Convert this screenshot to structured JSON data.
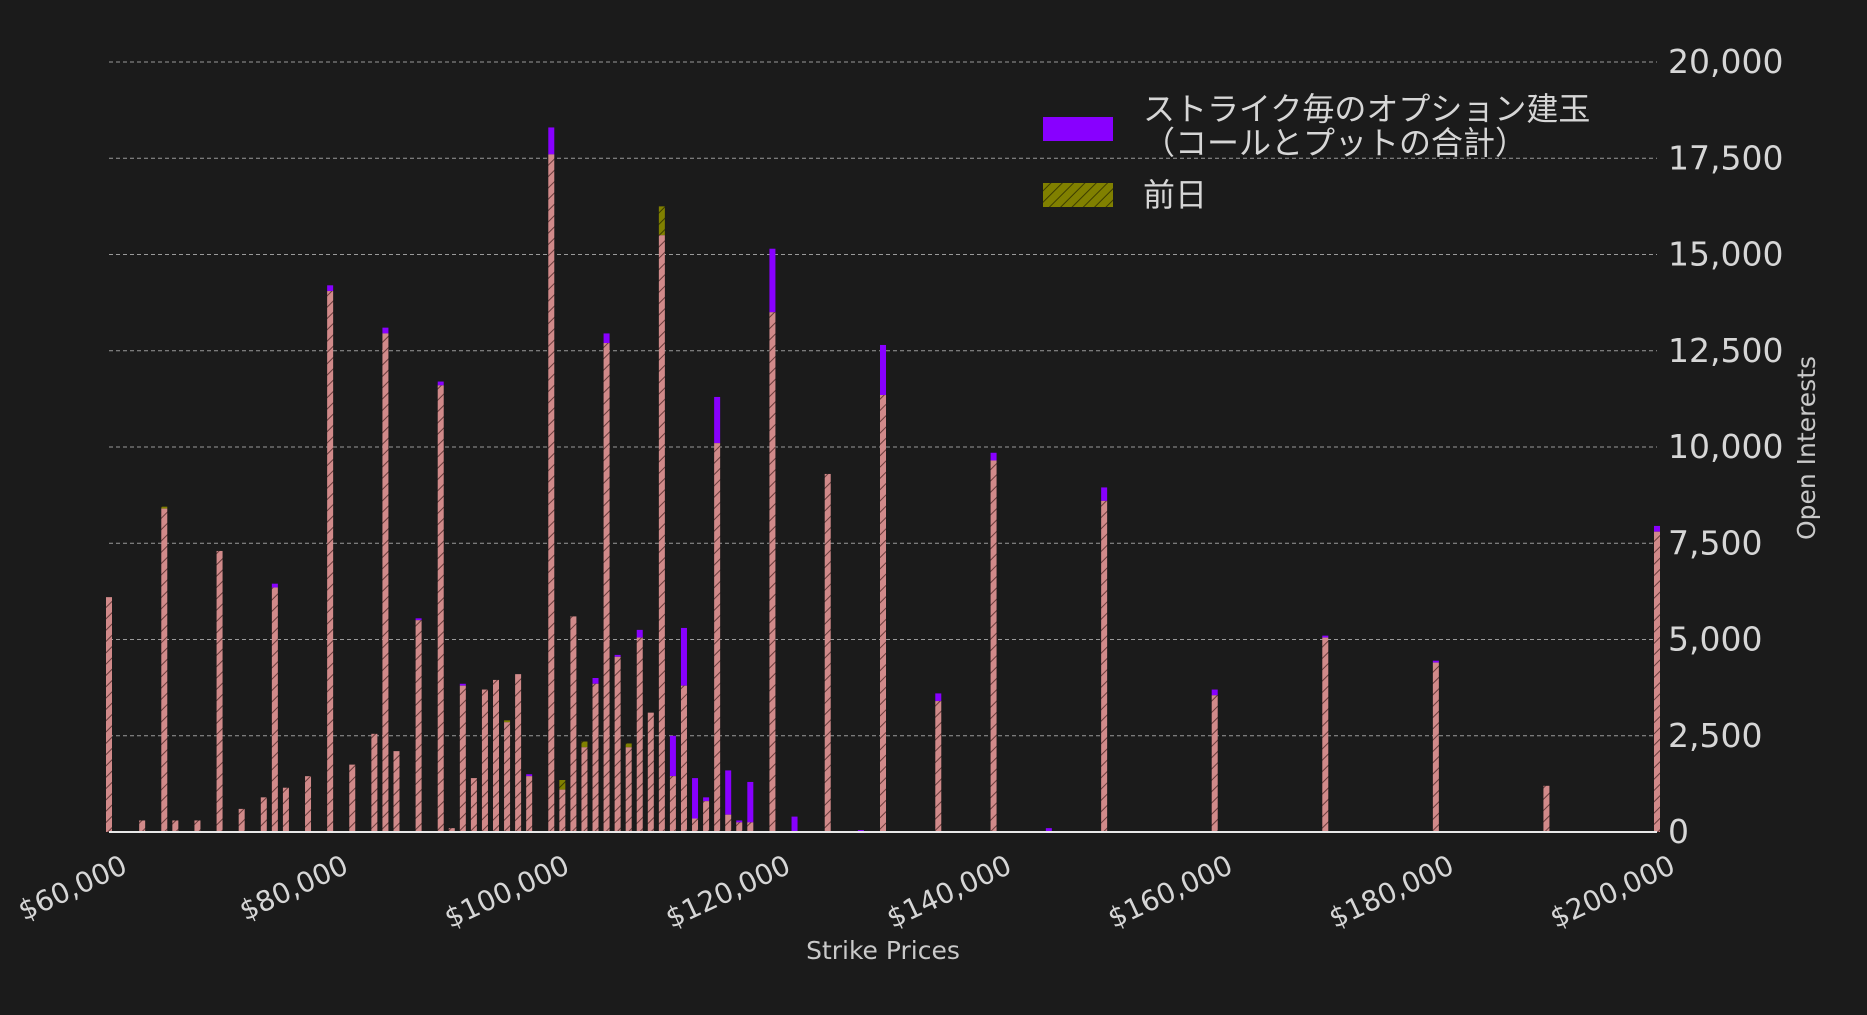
{
  "chart_data": {
    "type": "bar",
    "xlabel": "Strike Prices",
    "ylabel": "Open Interests",
    "xlim": [
      60000,
      200000
    ],
    "ylim": [
      0,
      20000
    ],
    "x_ticks": [
      "$60,000",
      "$80,000",
      "$100,000",
      "$120,000",
      "$140,000",
      "$160,000",
      "$180,000",
      "$200,000"
    ],
    "x_tick_values": [
      60000,
      80000,
      100000,
      120000,
      140000,
      160000,
      180000,
      200000
    ],
    "y_ticks": [
      "0",
      "2,500",
      "5,000",
      "7,500",
      "10,000",
      "12,500",
      "15,000",
      "17,500",
      "20,000"
    ],
    "y_tick_values": [
      0,
      2500,
      5000,
      7500,
      10000,
      12500,
      15000,
      17500,
      20000
    ],
    "grid": "horizontal dashed",
    "legend_position": "top-right",
    "colors": {
      "current": "#8800ff",
      "previous": "#808000",
      "overlap": "#d18a8a",
      "background": "#1b1b1b",
      "text": "#d6d6d6"
    },
    "series": [
      {
        "name": "ストライク毎のオプション建玉（コールとプットの合計）",
        "legend_lines": [
          "ストライク毎のオプション建玉",
          "（コールとプットの合計）"
        ],
        "values": [
          6100,
          300,
          8400,
          300,
          300,
          7300,
          600,
          900,
          6450,
          1150,
          1450,
          14200,
          1750,
          2550,
          13100,
          2100,
          5550,
          11700,
          100,
          3850,
          1400,
          3700,
          3950,
          2850,
          4100,
          1500,
          18300,
          1100,
          5600,
          2200,
          4000,
          12950,
          4600,
          2200,
          5250,
          3100,
          15500,
          2500,
          5300,
          1400,
          900,
          11300,
          1600,
          300,
          1300,
          15150,
          400,
          9300,
          50,
          12650,
          3600,
          9850,
          100,
          8950,
          3700,
          5100,
          4450,
          1200,
          7950
        ]
      },
      {
        "name": "前日",
        "values": [
          6100,
          300,
          8450,
          300,
          300,
          7300,
          600,
          900,
          6350,
          1150,
          1450,
          14050,
          1750,
          2550,
          12950,
          2100,
          5500,
          11600,
          100,
          3800,
          1400,
          3700,
          3950,
          2900,
          4100,
          1450,
          17600,
          1350,
          5600,
          2350,
          3850,
          12700,
          4550,
          2300,
          5050,
          3100,
          16250,
          1450,
          3800,
          350,
          800,
          10100,
          450,
          250,
          250,
          13500,
          0,
          9300,
          0,
          11350,
          3400,
          9650,
          0,
          8600,
          3550,
          5050,
          4400,
          1200,
          7800
        ]
      }
    ],
    "x": [
      60000,
      63000,
      65000,
      66000,
      68000,
      70000,
      72000,
      74000,
      75000,
      76000,
      78000,
      80000,
      82000,
      84000,
      85000,
      86000,
      88000,
      90000,
      91000,
      92000,
      93000,
      94000,
      95000,
      96000,
      97000,
      98000,
      100000,
      101000,
      102000,
      103000,
      104000,
      105000,
      106000,
      107000,
      108000,
      109000,
      110000,
      111000,
      112000,
      113000,
      114000,
      115000,
      116000,
      117000,
      118000,
      120000,
      122000,
      125000,
      128000,
      130000,
      135000,
      140000,
      145000,
      150000,
      160000,
      170000,
      180000,
      190000,
      200000
    ]
  }
}
